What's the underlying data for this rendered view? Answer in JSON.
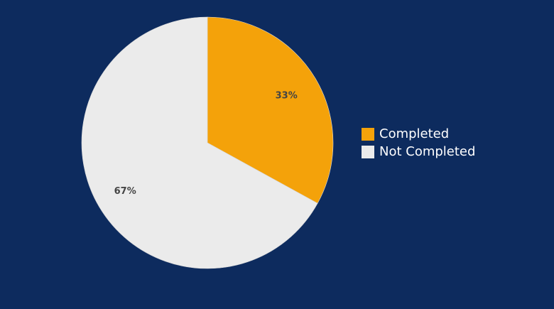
{
  "chart_data": {
    "type": "pie",
    "categories": [
      "Completed",
      "Not Completed"
    ],
    "values": [
      33,
      67
    ],
    "data_labels": [
      "33%",
      "67%"
    ],
    "colors": [
      "#f4a20a",
      "#ebebeb"
    ],
    "background": "#0d2b5e",
    "legend_position": "right",
    "title": "",
    "legend": [
      {
        "label": "Completed",
        "color": "#f4a20a"
      },
      {
        "label": "Not Completed",
        "color": "#ebebeb"
      }
    ]
  }
}
